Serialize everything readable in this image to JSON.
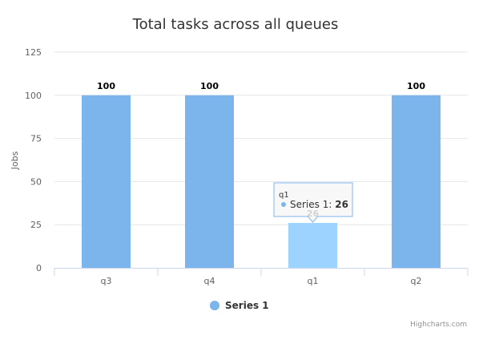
{
  "chart_data": {
    "type": "bar",
    "title": "Total tasks across all queues",
    "xlabel": "",
    "ylabel": "Jobs",
    "categories": [
      "q3",
      "q4",
      "q1",
      "q2"
    ],
    "series": [
      {
        "name": "Series 1",
        "values": [
          100,
          100,
          26,
          100
        ]
      }
    ],
    "ylim": [
      0,
      125
    ],
    "yticks": [
      0,
      25,
      50,
      75,
      100,
      125
    ],
    "grid": true,
    "legend_position": "bottom-center",
    "colors": {
      "bar": "#7cb5ec",
      "bar_hover": "#9cd3ff",
      "grid": "#e6e6e6"
    },
    "data_labels": [
      "100",
      "100",
      "26",
      "100"
    ],
    "tooltip": {
      "category": "q1",
      "series_name": "Series 1",
      "separator": ": ",
      "value": "26",
      "point_index": 2
    },
    "credits": "Highcharts.com"
  }
}
